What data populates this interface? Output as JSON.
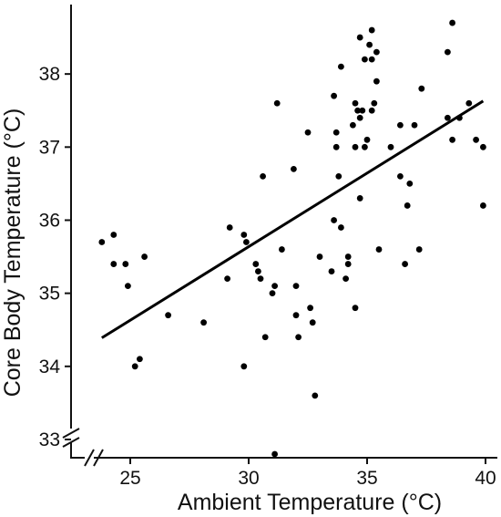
{
  "chart_data": {
    "type": "scatter",
    "title": "",
    "xlabel": "Ambient Temperature (°C)",
    "ylabel": "Core Body Temperature (°C)",
    "xlim": [
      22.5,
      40.5
    ],
    "ylim": [
      32.75,
      38.95
    ],
    "x_ticks": [
      25,
      30,
      35,
      40
    ],
    "y_ticks": [
      33,
      34,
      35,
      36,
      37,
      38
    ],
    "axis_breaks": [
      "x",
      "y"
    ],
    "grid": false,
    "legend": "none",
    "trend_line": {
      "x": [
        23.8,
        39.9
      ],
      "y": [
        34.39,
        37.63
      ]
    },
    "series": [
      {
        "values": [
          [
            23.8,
            35.7
          ],
          [
            24.3,
            35.8
          ],
          [
            24.3,
            35.4
          ],
          [
            24.8,
            35.4
          ],
          [
            24.9,
            35.1
          ],
          [
            25.2,
            34.0
          ],
          [
            25.4,
            34.1
          ],
          [
            25.6,
            35.5
          ],
          [
            26.6,
            34.7
          ],
          [
            28.1,
            34.6
          ],
          [
            29.1,
            35.2
          ],
          [
            29.2,
            35.9
          ],
          [
            29.8,
            35.8
          ],
          [
            29.8,
            34.0
          ],
          [
            29.9,
            35.7
          ],
          [
            30.3,
            35.4
          ],
          [
            30.4,
            35.3
          ],
          [
            30.5,
            35.2
          ],
          [
            30.6,
            36.6
          ],
          [
            30.7,
            34.4
          ],
          [
            31.0,
            35.0
          ],
          [
            31.1,
            35.1
          ],
          [
            31.1,
            32.8
          ],
          [
            31.2,
            37.6
          ],
          [
            31.4,
            35.6
          ],
          [
            31.9,
            36.7
          ],
          [
            32.0,
            35.1
          ],
          [
            32.0,
            34.7
          ],
          [
            32.1,
            34.4
          ],
          [
            32.5,
            37.2
          ],
          [
            32.6,
            34.8
          ],
          [
            32.7,
            34.6
          ],
          [
            32.8,
            33.6
          ],
          [
            33.0,
            35.5
          ],
          [
            33.5,
            35.3
          ],
          [
            33.6,
            37.7
          ],
          [
            33.6,
            36.0
          ],
          [
            33.7,
            37.2
          ],
          [
            33.7,
            37.0
          ],
          [
            33.8,
            36.6
          ],
          [
            33.9,
            38.1
          ],
          [
            33.9,
            35.9
          ],
          [
            34.1,
            35.2
          ],
          [
            34.2,
            35.5
          ],
          [
            34.2,
            35.4
          ],
          [
            34.4,
            37.3
          ],
          [
            34.5,
            37.6
          ],
          [
            34.5,
            37.0
          ],
          [
            34.5,
            34.8
          ],
          [
            34.6,
            37.5
          ],
          [
            34.7,
            38.5
          ],
          [
            34.7,
            37.4
          ],
          [
            34.7,
            36.3
          ],
          [
            34.8,
            37.5
          ],
          [
            34.9,
            38.2
          ],
          [
            34.9,
            37.0
          ],
          [
            35.0,
            37.1
          ],
          [
            35.1,
            38.4
          ],
          [
            35.2,
            38.6
          ],
          [
            35.2,
            38.2
          ],
          [
            35.2,
            37.5
          ],
          [
            35.3,
            37.6
          ],
          [
            35.4,
            38.3
          ],
          [
            35.4,
            37.9
          ],
          [
            35.5,
            35.6
          ],
          [
            36.0,
            37.0
          ],
          [
            36.4,
            37.3
          ],
          [
            36.4,
            36.6
          ],
          [
            36.6,
            35.4
          ],
          [
            36.7,
            36.2
          ],
          [
            36.8,
            36.5
          ],
          [
            37.0,
            37.3
          ],
          [
            37.2,
            35.6
          ],
          [
            37.3,
            37.8
          ],
          [
            38.4,
            38.3
          ],
          [
            38.4,
            37.4
          ],
          [
            38.6,
            38.7
          ],
          [
            38.6,
            37.1
          ],
          [
            38.9,
            37.4
          ],
          [
            39.3,
            37.6
          ],
          [
            39.6,
            37.1
          ],
          [
            39.9,
            37.0
          ],
          [
            39.9,
            36.2
          ]
        ]
      }
    ]
  }
}
